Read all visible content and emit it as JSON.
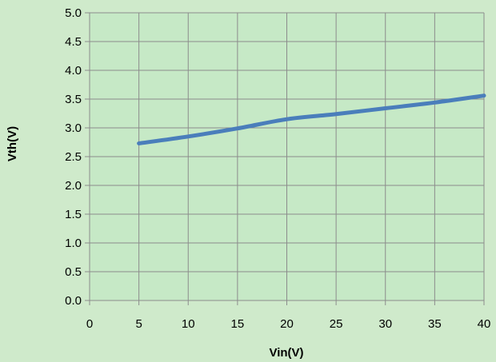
{
  "chart_data": {
    "type": "line",
    "xlabel": "Vin(V)",
    "ylabel": "Vth(V)",
    "xlim": [
      0,
      40
    ],
    "ylim": [
      0.0,
      5.0
    ],
    "x_ticks": [
      "0",
      "5",
      "10",
      "15",
      "20",
      "25",
      "30",
      "35",
      "40"
    ],
    "y_ticks": [
      "0.0",
      "0.5",
      "1.0",
      "1.5",
      "2.0",
      "2.5",
      "3.0",
      "3.5",
      "4.0",
      "4.5",
      "5.0"
    ],
    "grid": true,
    "legend": "none",
    "series": [
      {
        "color": "#4a7ebb",
        "x": [
          5,
          10,
          15,
          20,
          25,
          30,
          35,
          40
        ],
        "y": [
          2.73,
          2.85,
          2.99,
          3.15,
          3.24,
          3.34,
          3.44,
          3.56
        ]
      }
    ]
  },
  "colors": {
    "background": "#cfeacb",
    "plot_area": "#c6e9c6",
    "grid": "#8c8c8c"
  }
}
